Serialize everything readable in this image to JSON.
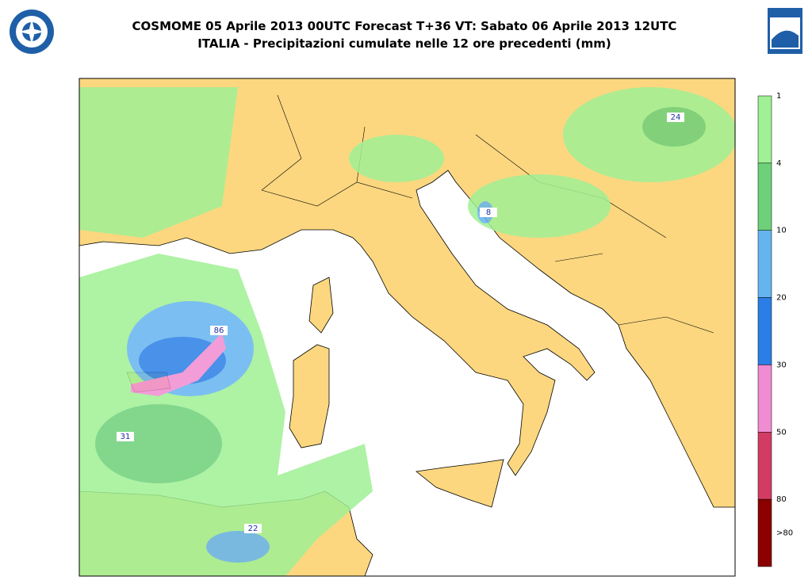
{
  "header": {
    "title_line1": "COSMOME 05 Aprile 2013 00UTC Forecast T+36 VT: Sabato 06 Aprile 2013 12UTC",
    "title_line2": "ITALIA - Precipitazioni cumulate nelle 12 ore precedenti (mm)"
  },
  "colorbar": {
    "colors": [
      "#a0f095",
      "#6dd17a",
      "#64b4f0",
      "#2a7ee6",
      "#f08cd2",
      "#d23c64",
      "#8c0000"
    ],
    "labels": [
      "1",
      "4",
      "10",
      "20",
      "30",
      "50",
      "80",
      ">80"
    ]
  },
  "map_labels": [
    "24",
    "8",
    "86",
    "31",
    "22"
  ]
}
